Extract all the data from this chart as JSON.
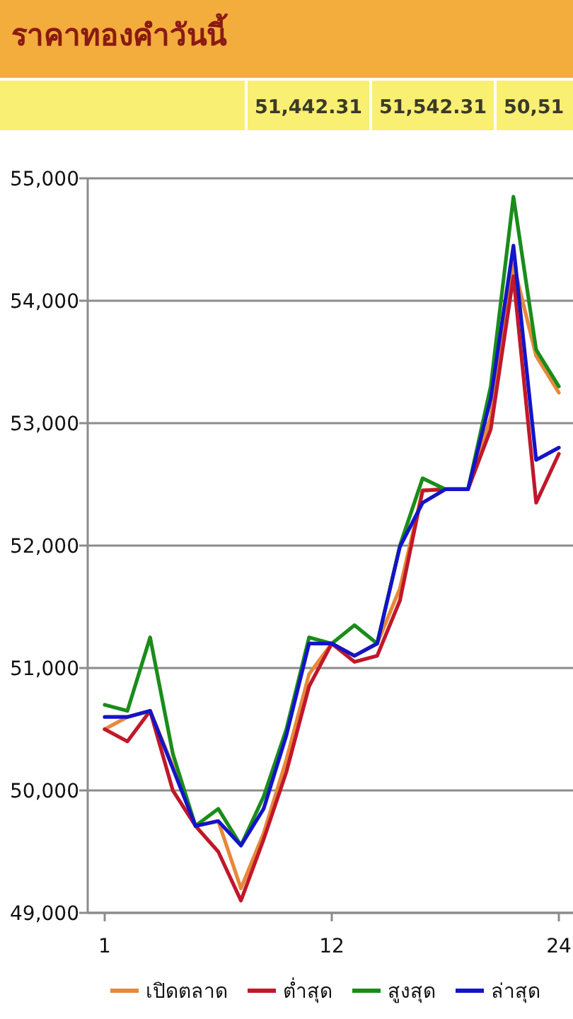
{
  "chart_data": {
    "type": "line",
    "title": "ราคาทองคำวันนี้",
    "annotations": [
      "51,442.31",
      "51,542.31",
      "50,51"
    ],
    "categories": [
      "1",
      null,
      null,
      null,
      null,
      null,
      null,
      null,
      null,
      null,
      "12",
      null,
      null,
      null,
      null,
      null,
      null,
      null,
      null,
      null,
      "24"
    ],
    "series": [
      {
        "name": "เปิดตลาด",
        "color": "#e8883a",
        "values": [
          50500,
          50600,
          50650,
          50200,
          49710,
          49750,
          49200,
          49650,
          50250,
          50950,
          51200,
          51100,
          51200,
          51650,
          52450,
          52460,
          52460,
          53050,
          54300,
          53550,
          53250
        ]
      },
      {
        "name": "ต่ำสุด",
        "color": "#c0182a",
        "values": [
          50500,
          50400,
          50650,
          50000,
          49710,
          49500,
          49100,
          49600,
          50150,
          50850,
          51200,
          51050,
          51100,
          51550,
          52450,
          52460,
          52460,
          52950,
          54200,
          52350,
          52750
        ]
      },
      {
        "name": "สูงสุด",
        "color": "#1a8c1a",
        "values": [
          50700,
          50650,
          51250,
          50300,
          49710,
          49850,
          49550,
          49950,
          50500,
          51250,
          51200,
          51350,
          51200,
          52000,
          52550,
          52460,
          52460,
          53300,
          54850,
          53600,
          53300
        ]
      },
      {
        "name": "ล่าสุด",
        "color": "#1414c8",
        "values": [
          50600,
          50600,
          50650,
          50180,
          49710,
          49750,
          49550,
          49850,
          50450,
          51200,
          51200,
          51100,
          51200,
          51990,
          52350,
          52460,
          52460,
          53200,
          54450,
          52700,
          52800
        ]
      }
    ],
    "ylim": [
      49000,
      55000
    ],
    "yticks": [
      {
        "value": 49000,
        "label": "49,000"
      },
      {
        "value": 50000,
        "label": "50,000"
      },
      {
        "value": 51000,
        "label": "51,000"
      },
      {
        "value": 52000,
        "label": "52,000"
      },
      {
        "value": 53000,
        "label": "53,000"
      },
      {
        "value": 54000,
        "label": "54,000"
      },
      {
        "value": 55000,
        "label": "55,000"
      }
    ],
    "grid": "y",
    "legend": "bottom"
  }
}
